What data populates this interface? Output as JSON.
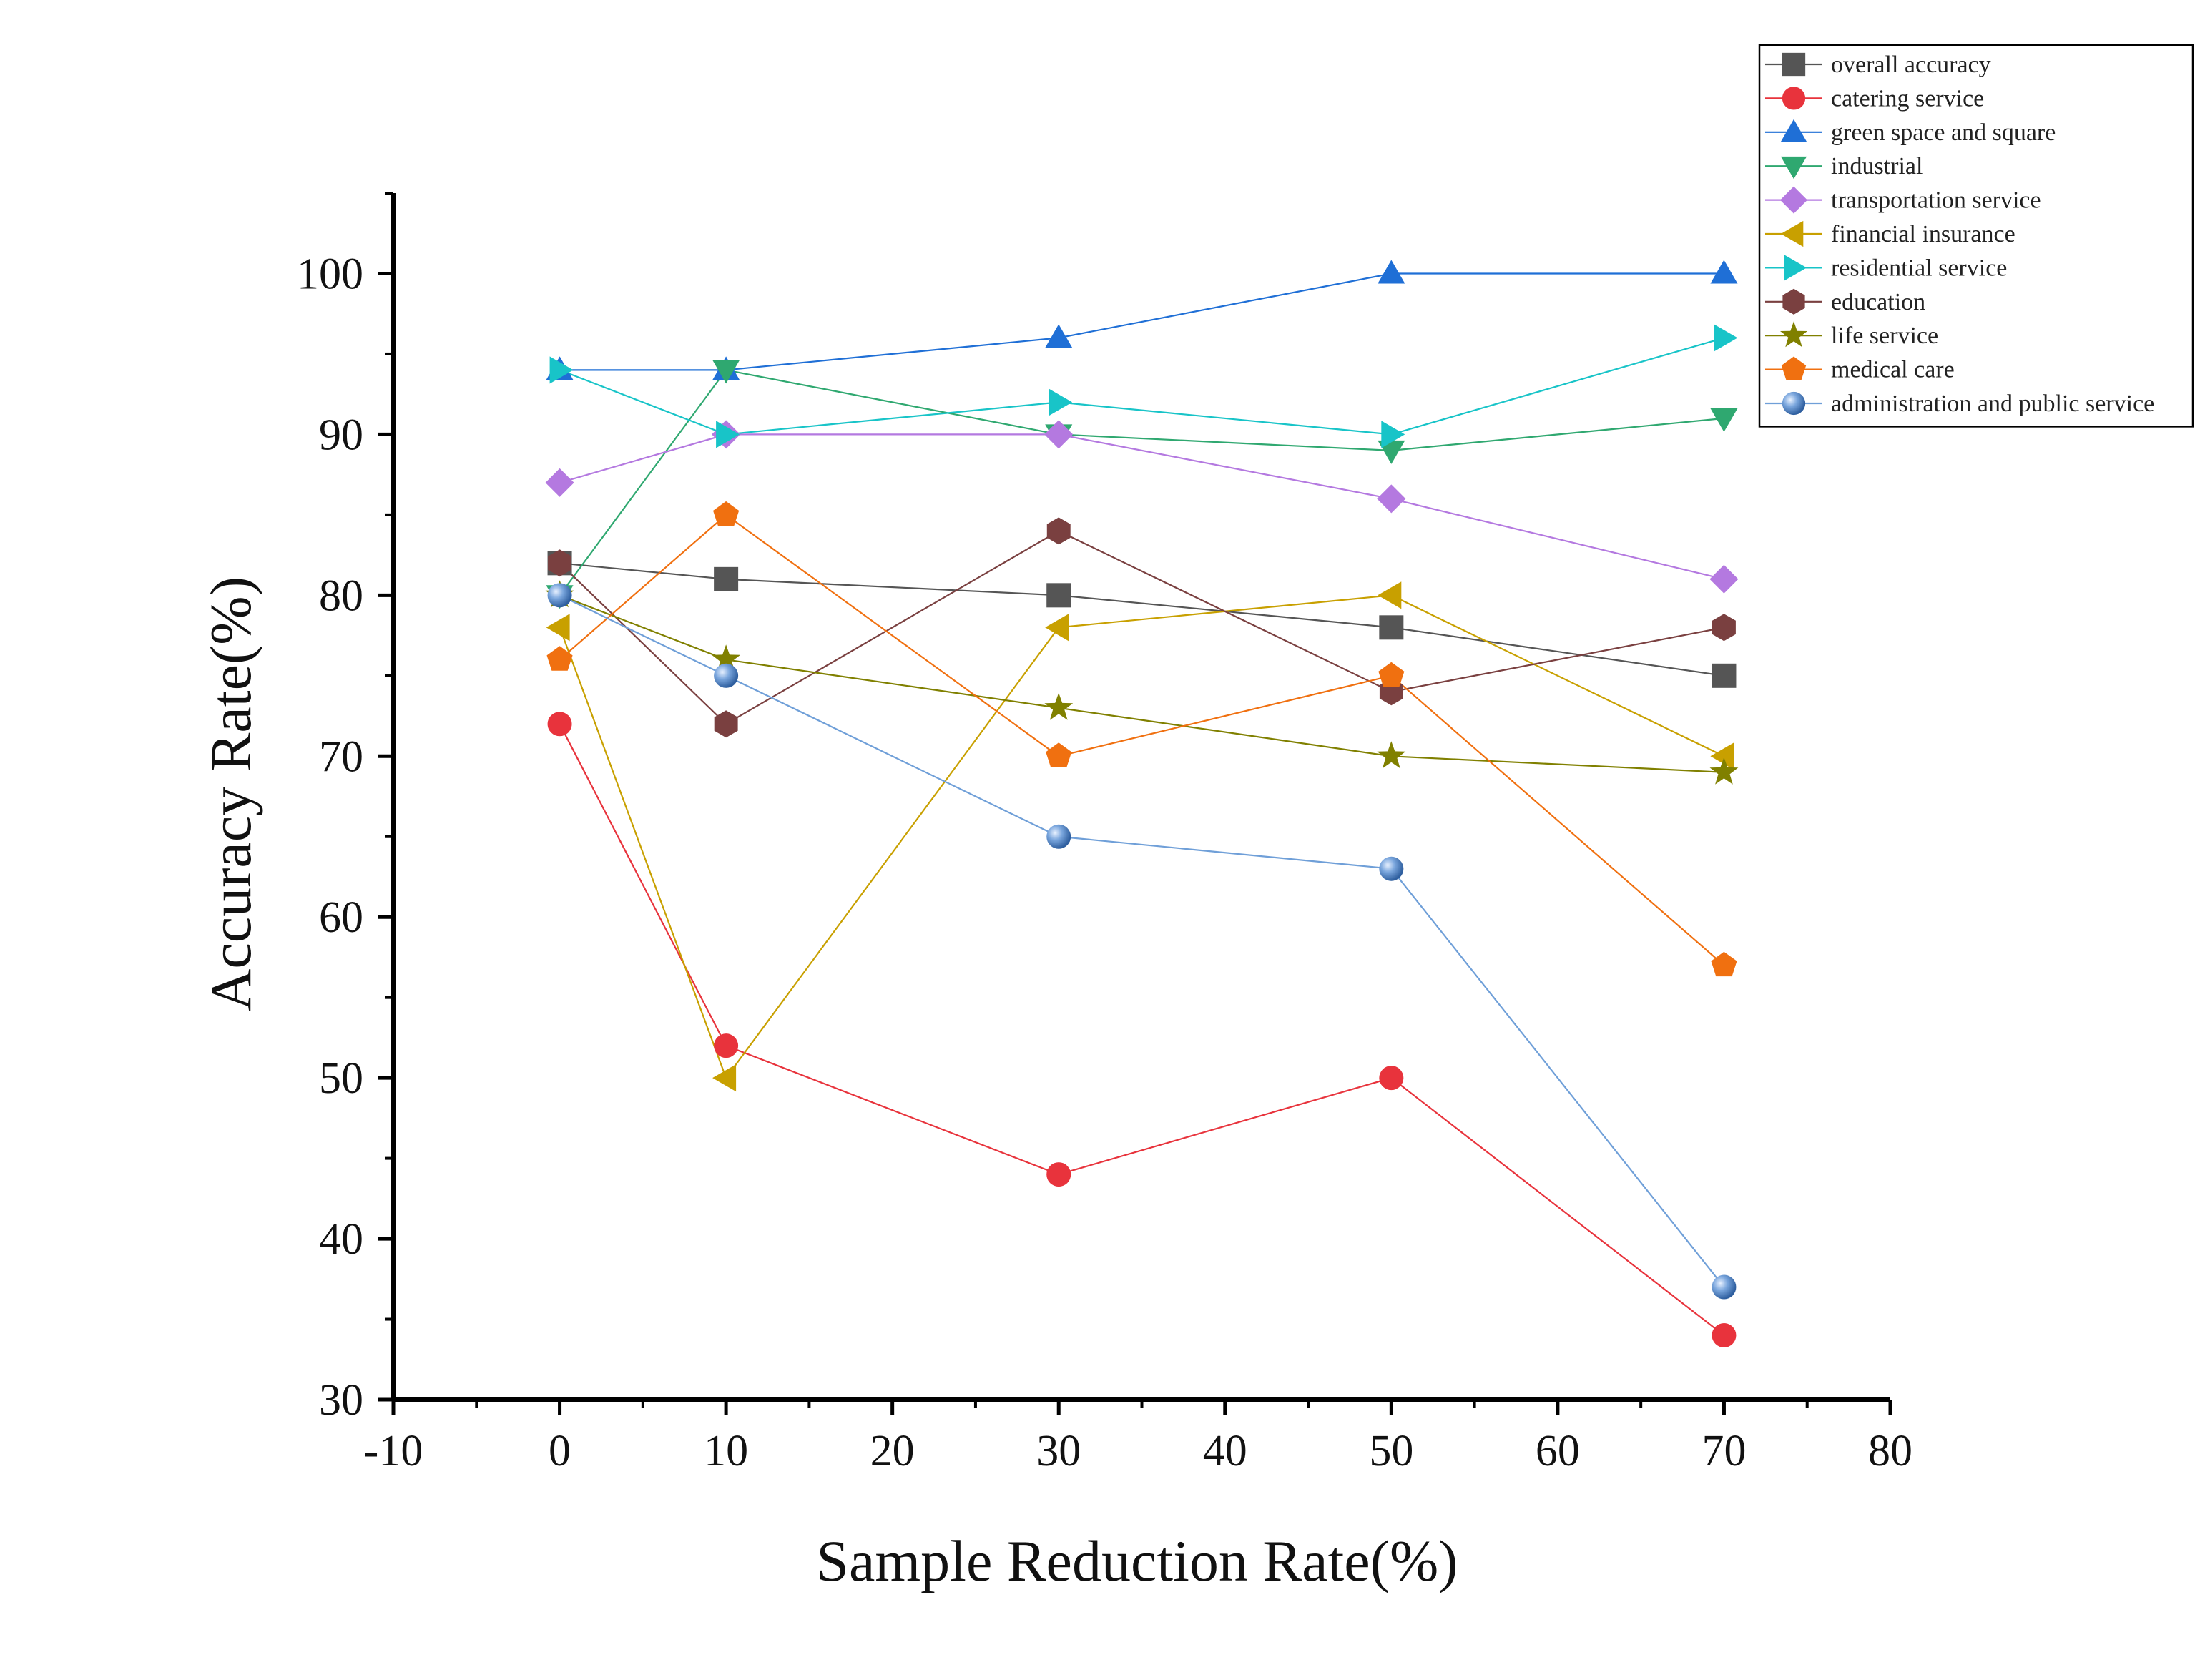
{
  "chart_data": {
    "type": "line",
    "title": "",
    "xlabel": "Sample Reduction Rate(%)",
    "ylabel": "Accuracy Rate(%)",
    "xlim": [
      -10,
      80
    ],
    "ylim": [
      30,
      105
    ],
    "xticks": [
      -10,
      0,
      10,
      20,
      30,
      40,
      50,
      60,
      70,
      80
    ],
    "yticks": [
      30,
      40,
      50,
      60,
      70,
      80,
      90,
      100
    ],
    "x": [
      0,
      10,
      30,
      50,
      70
    ],
    "grid": false,
    "legend_position": "top-right",
    "series": [
      {
        "name": "overall accuracy",
        "values": [
          82,
          81,
          80,
          78,
          75
        ],
        "color": "#555555",
        "marker": "square"
      },
      {
        "name": "catering service",
        "values": [
          72,
          52,
          44,
          50,
          34
        ],
        "color": "#e8333c",
        "marker": "circle"
      },
      {
        "name": "green space and square",
        "values": [
          94,
          94,
          96,
          100,
          100
        ],
        "color": "#1f6fd6",
        "marker": "triangle-up"
      },
      {
        "name": "industrial",
        "values": [
          80,
          94,
          90,
          89,
          91
        ],
        "color": "#2fa870",
        "marker": "triangle-down"
      },
      {
        "name": "transportation service",
        "values": [
          87,
          90,
          90,
          86,
          81
        ],
        "color": "#b479e0",
        "marker": "diamond"
      },
      {
        "name": "financial insurance",
        "values": [
          78,
          50,
          78,
          80,
          70
        ],
        "color": "#c8a000",
        "marker": "triangle-left"
      },
      {
        "name": "residential service",
        "values": [
          94,
          90,
          92,
          90,
          96
        ],
        "color": "#18c4c8",
        "marker": "triangle-right"
      },
      {
        "name": "education",
        "values": [
          82,
          72,
          84,
          74,
          78
        ],
        "color": "#7a4040",
        "marker": "hexagon"
      },
      {
        "name": "life service",
        "values": [
          80,
          76,
          73,
          70,
          69
        ],
        "color": "#808000",
        "marker": "star"
      },
      {
        "name": "medical care",
        "values": [
          76,
          85,
          70,
          75,
          57
        ],
        "color": "#f07010",
        "marker": "pentagon"
      },
      {
        "name": "administration and public service",
        "values": [
          80,
          75,
          65,
          63,
          37
        ],
        "color": "#6f9fd8",
        "marker": "sphere"
      }
    ]
  }
}
